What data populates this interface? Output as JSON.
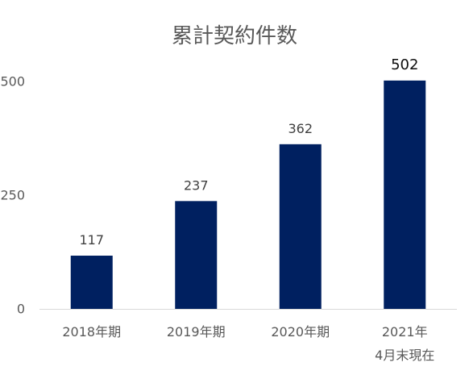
{
  "chart_data": {
    "type": "bar",
    "title": "累計契約件数",
    "categories": [
      "2018年期",
      "2019年期",
      "2020年期",
      "2021年\n4月末現在"
    ],
    "values": [
      117,
      237,
      362,
      502
    ],
    "xlabel": "",
    "ylabel": "",
    "ylim": [
      0,
      500
    ],
    "yticks": [
      0,
      250,
      500
    ],
    "grid": false,
    "bar_color": "#002060",
    "text_color": "#595959",
    "axis_color": "#d9d9d9"
  }
}
